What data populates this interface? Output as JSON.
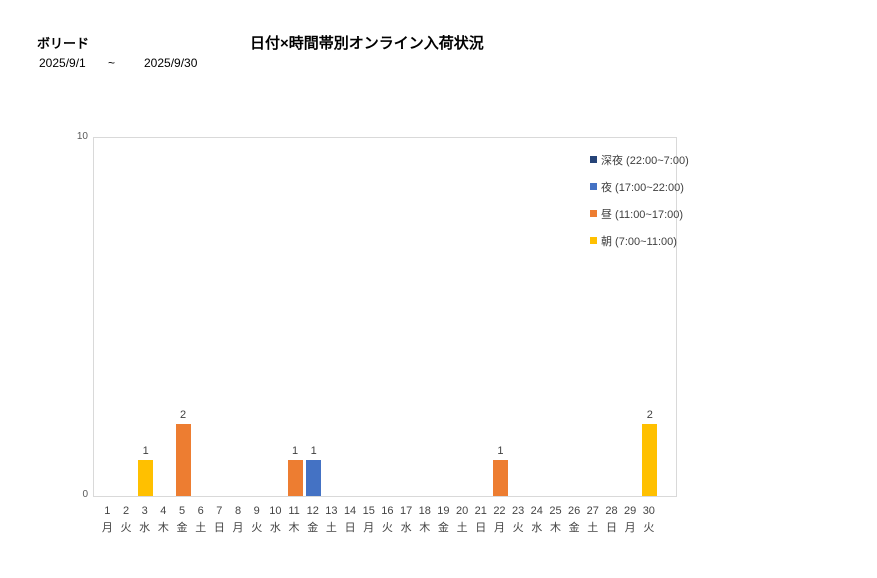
{
  "header": {
    "report_name": "ボリード",
    "chart_title": "日付×時間帯別オンライン入荷状況",
    "date_from": "2025/9/1",
    "date_separator": "~",
    "date_to": "2025/9/30"
  },
  "colors": {
    "midnight": "#264478",
    "night": "#4472C4",
    "noon": "#ED7D31",
    "morning": "#FFC000",
    "plot_border": "#D9D9D9",
    "tick_text": "#595959",
    "label_text": "#404040"
  },
  "legend": [
    {
      "key": "midnight",
      "label": "深夜 (22:00~7:00)",
      "color": "#264478"
    },
    {
      "key": "night",
      "label": "夜 (17:00~22:00)",
      "color": "#4472C4"
    },
    {
      "key": "noon",
      "label": "昼 (11:00~17:00)",
      "color": "#ED7D31"
    },
    {
      "key": "morning",
      "label": "朝 (7:00~11:00)",
      "color": "#FFC000"
    }
  ],
  "chart_data": {
    "type": "bar",
    "title": "日付×時間帯別オンライン入荷状況",
    "xlabel": "",
    "ylabel": "",
    "ylim": [
      0,
      10
    ],
    "y_ticks": [
      0,
      10
    ],
    "grid": false,
    "legend_position": "top-right",
    "categories_day": [
      "1",
      "2",
      "3",
      "4",
      "5",
      "6",
      "7",
      "8",
      "9",
      "10",
      "11",
      "12",
      "13",
      "14",
      "15",
      "16",
      "17",
      "18",
      "19",
      "20",
      "21",
      "22",
      "23",
      "24",
      "25",
      "26",
      "27",
      "28",
      "29",
      "30"
    ],
    "categories_weekday": [
      "月",
      "火",
      "水",
      "木",
      "金",
      "土",
      "日",
      "月",
      "火",
      "水",
      "木",
      "金",
      "土",
      "日",
      "月",
      "火",
      "水",
      "木",
      "金",
      "土",
      "日",
      "月",
      "火",
      "水",
      "木",
      "金",
      "土",
      "日",
      "月",
      "火"
    ],
    "series": [
      {
        "key": "midnight",
        "name": "深夜 (22:00~7:00)",
        "color": "#264478",
        "values": [
          0,
          0,
          0,
          0,
          0,
          0,
          0,
          0,
          0,
          0,
          0,
          0,
          0,
          0,
          0,
          0,
          0,
          0,
          0,
          0,
          0,
          0,
          0,
          0,
          0,
          0,
          0,
          0,
          0,
          0
        ]
      },
      {
        "key": "night",
        "name": "夜 (17:00~22:00)",
        "color": "#4472C4",
        "values": [
          0,
          0,
          0,
          0,
          0,
          0,
          0,
          0,
          0,
          0,
          0,
          1,
          0,
          0,
          0,
          0,
          0,
          0,
          0,
          0,
          0,
          0,
          0,
          0,
          0,
          0,
          0,
          0,
          0,
          0
        ]
      },
      {
        "key": "noon",
        "name": "昼 (11:00~17:00)",
        "color": "#ED7D31",
        "values": [
          0,
          0,
          0,
          0,
          2,
          0,
          0,
          0,
          0,
          0,
          1,
          0,
          0,
          0,
          0,
          0,
          0,
          0,
          0,
          0,
          0,
          1,
          0,
          0,
          0,
          0,
          0,
          0,
          0,
          0
        ]
      },
      {
        "key": "morning",
        "name": "朝 (7:00~11:00)",
        "color": "#FFC000",
        "values": [
          0,
          0,
          1,
          0,
          0,
          0,
          0,
          0,
          0,
          0,
          0,
          0,
          0,
          0,
          0,
          0,
          0,
          0,
          0,
          0,
          0,
          0,
          0,
          0,
          0,
          0,
          0,
          0,
          0,
          2
        ]
      }
    ]
  }
}
